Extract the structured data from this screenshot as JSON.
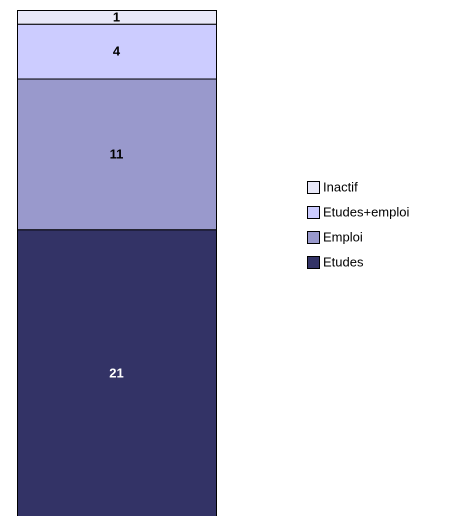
{
  "chart_data": {
    "type": "stacked_bar",
    "series": [
      {
        "name": "Etudes",
        "color": "#333366",
        "values": [
          21
        ]
      },
      {
        "name": "Emploi",
        "color": "#9999cc",
        "values": [
          11
        ]
      },
      {
        "name": "Etudes+emploi",
        "color": "#ccccff",
        "values": [
          4
        ]
      },
      {
        "name": "Inactif",
        "color": "#e8e8f8",
        "values": [
          1
        ]
      }
    ]
  }
}
